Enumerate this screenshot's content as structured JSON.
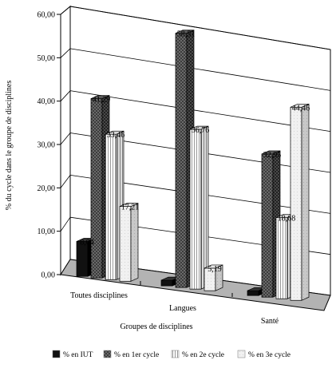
{
  "chart_data": {
    "type": "bar",
    "categories": [
      "Toutes disciplines",
      "Langues",
      "Santé"
    ],
    "series": [
      {
        "name": "% en IUT",
        "values": [
          8.04,
          1.29,
          1.11
        ],
        "labels": [
          "8,04",
          "",
          ""
        ],
        "color": "#111111",
        "pattern": "solid"
      },
      {
        "name": "% en 1er cycle",
        "values": [
          41.29,
          58.51,
          32.95
        ],
        "labels": [
          "41,29",
          "58,51",
          "32,95"
        ],
        "color": "#444444",
        "pattern": "checker"
      },
      {
        "name": "% en 2e cycle",
        "values": [
          33.46,
          36.76,
          18.68
        ],
        "labels": [
          "33,46",
          "36,76",
          "18,68"
        ],
        "color": "#eeeeee",
        "pattern": "vertical-lines"
      },
      {
        "name": "% en 3e cycle",
        "values": [
          17.21,
          5.19,
          44.46
        ],
        "labels": [
          "17,21",
          "5,19",
          "44,46"
        ],
        "color": "#f2f2f2",
        "pattern": "light"
      }
    ],
    "ylim": [
      0,
      60
    ],
    "yticks": [
      "0,00",
      "10,00",
      "20,00",
      "30,00",
      "40,00",
      "50,00",
      "60,00"
    ],
    "xlabel": "Groupes de disciplines",
    "ylabel": "% du cycle dans le groupe de disciplines",
    "grid": true,
    "legend_position": "bottom",
    "projection": "3d"
  }
}
